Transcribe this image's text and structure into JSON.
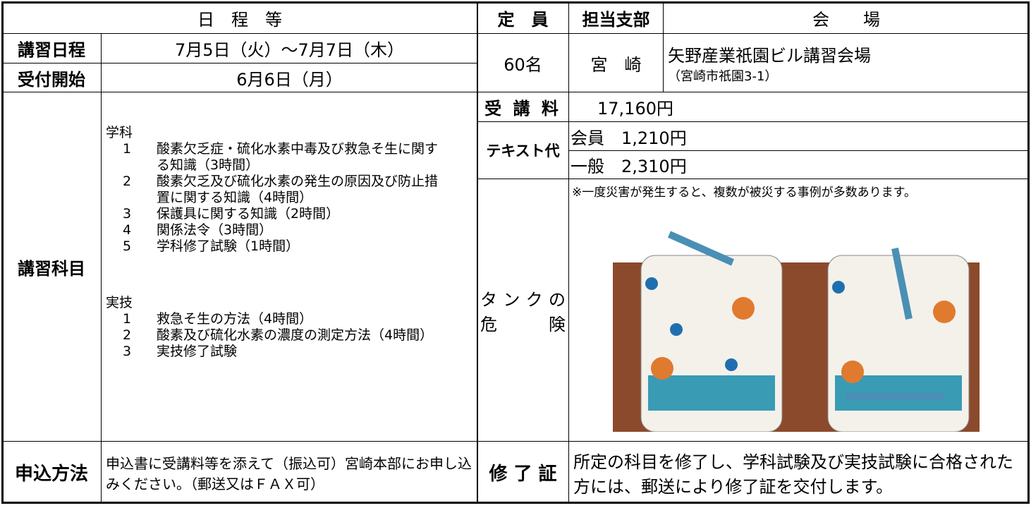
{
  "header": {
    "schedule": "日　程　等",
    "capacity": "定　員",
    "branch": "担当支部",
    "venue": "会　　場"
  },
  "date": {
    "label": "講習日程",
    "value": "7月5日（火）～7月7日（木）"
  },
  "reception": {
    "label": "受付開始",
    "value": "6月6日（月）"
  },
  "capacity": "60名",
  "branch": "宮　崎",
  "venue": {
    "name": "矢野産業祇園ビル講習会場",
    "address": "（宮崎市祇園3-1）"
  },
  "subjects": {
    "label": "講習科目",
    "sections": [
      {
        "title": "学科",
        "items": [
          {
            "num": "1",
            "text": "酸素欠乏症・硫化水素中毒及び救急そ生に関する知識（3時間）"
          },
          {
            "num": "2",
            "text": "酸素欠乏及び硫化水素の発生の原因及び防止措置に関する知識（4時間）"
          },
          {
            "num": "3",
            "text": "保護具に関する知識（2時間）"
          },
          {
            "num": "4",
            "text": "関係法令（3時間）"
          },
          {
            "num": "5",
            "text": "学科修了試験（1時間）"
          }
        ]
      },
      {
        "title": "実技",
        "items": [
          {
            "num": "1",
            "text": "救急そ生の方法（4時間）"
          },
          {
            "num": "2",
            "text": "酸素及び硫化水素の濃度の測定方法（4時間）"
          },
          {
            "num": "3",
            "text": "実技修了試験"
          }
        ]
      }
    ]
  },
  "fee": {
    "label": "受 講 料",
    "value": "17,160円"
  },
  "text_fee": {
    "label": "テキスト代",
    "member": "会員　1,210円",
    "general": "一般　2,310円"
  },
  "danger": {
    "label": [
      "タンクの",
      "危　　険"
    ],
    "note": "※一度災害が発生すると、複数が被災する事例が多数あります。"
  },
  "application": {
    "label": "申込方法",
    "text": "申込書に受講料等を添えて（振込可）宮崎本部にお申し込みください。（郵送又はＦＡＸ可）"
  },
  "certificate": {
    "label": "修 了 証",
    "text": "所定の科目を修了し、学科試験及び実技試験に合格された方には、郵送により修了証を交付します。"
  }
}
